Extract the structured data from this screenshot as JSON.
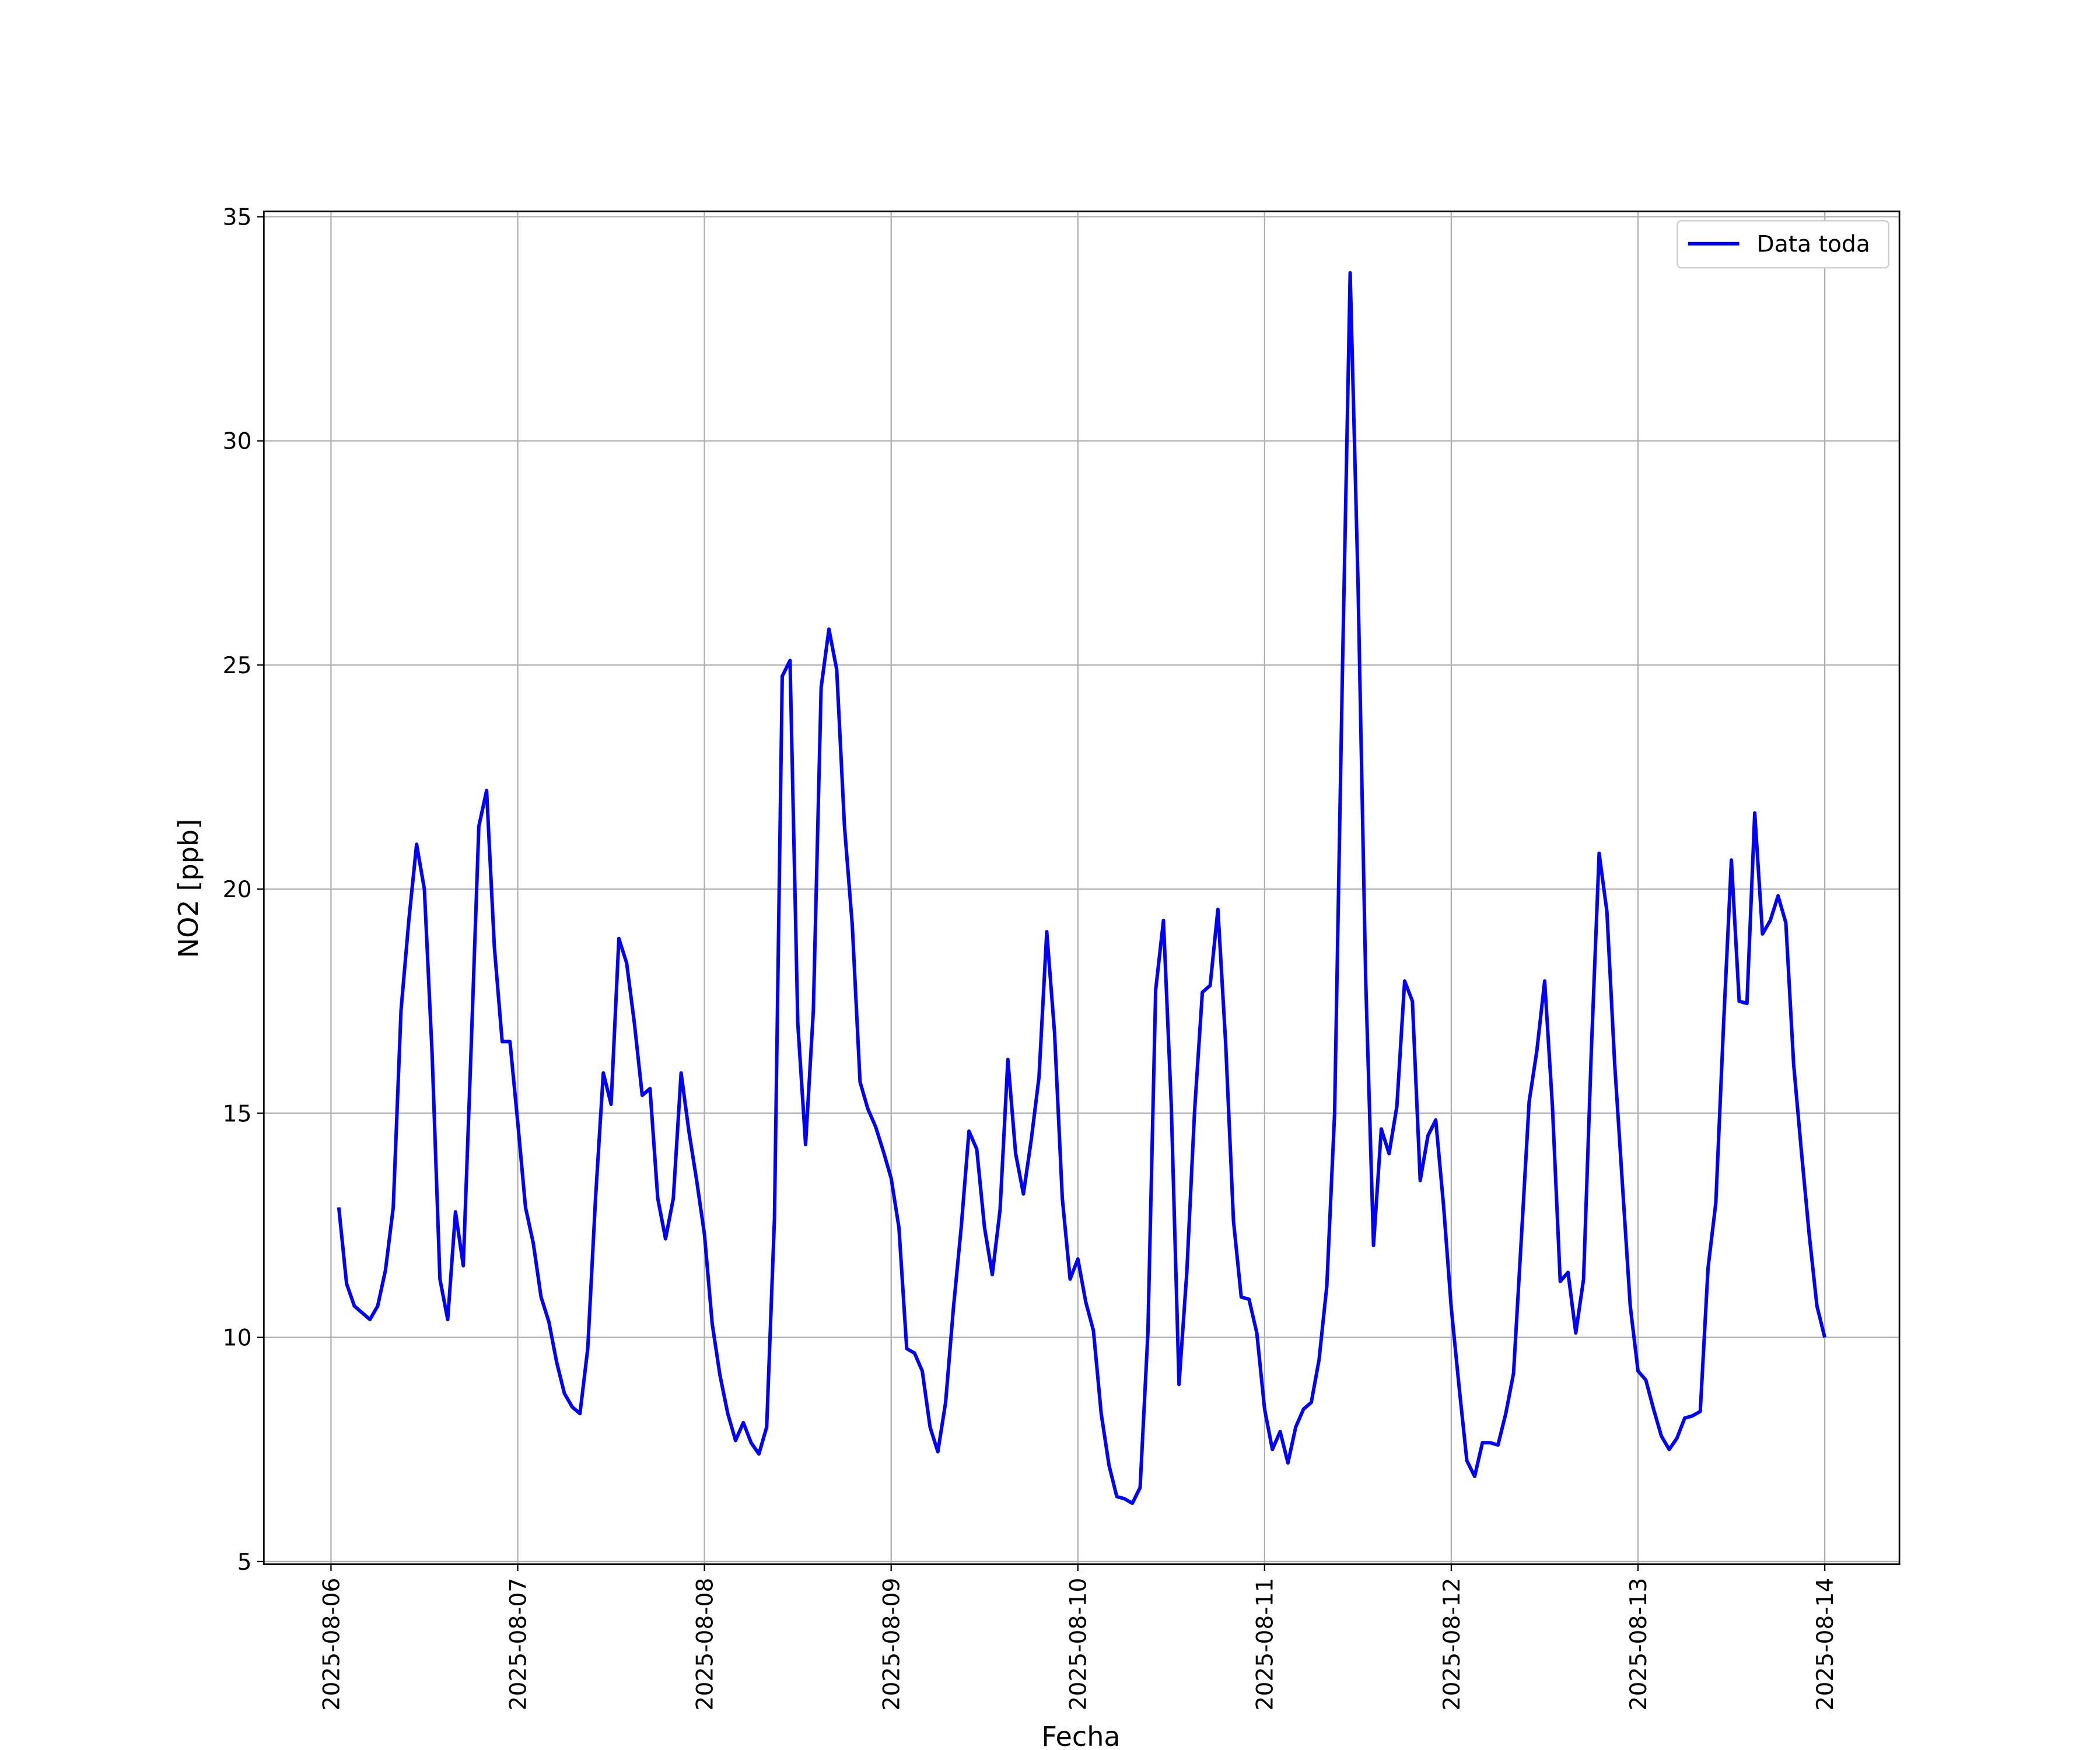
{
  "chart_data": {
    "type": "line",
    "xlabel": "Fecha",
    "ylabel": "NO2 [ppb]",
    "x": [
      "2025-08-06 01:00",
      "2025-08-06 02:00",
      "2025-08-06 03:00",
      "2025-08-06 04:00",
      "2025-08-06 05:00",
      "2025-08-06 06:00",
      "2025-08-06 07:00",
      "2025-08-06 08:00",
      "2025-08-06 09:00",
      "2025-08-06 10:00",
      "2025-08-06 11:00",
      "2025-08-06 12:00",
      "2025-08-06 13:00",
      "2025-08-06 14:00",
      "2025-08-06 15:00",
      "2025-08-06 16:00",
      "2025-08-06 17:00",
      "2025-08-06 18:00",
      "2025-08-06 19:00",
      "2025-08-06 20:00",
      "2025-08-06 21:00",
      "2025-08-06 22:00",
      "2025-08-06 23:00",
      "2025-08-07 00:00",
      "2025-08-07 01:00",
      "2025-08-07 02:00",
      "2025-08-07 03:00",
      "2025-08-07 04:00",
      "2025-08-07 05:00",
      "2025-08-07 06:00",
      "2025-08-07 07:00",
      "2025-08-07 08:00",
      "2025-08-07 09:00",
      "2025-08-07 10:00",
      "2025-08-07 11:00",
      "2025-08-07 12:00",
      "2025-08-07 13:00",
      "2025-08-07 14:00",
      "2025-08-07 15:00",
      "2025-08-07 16:00",
      "2025-08-07 17:00",
      "2025-08-07 18:00",
      "2025-08-07 19:00",
      "2025-08-07 20:00",
      "2025-08-07 21:00",
      "2025-08-07 22:00",
      "2025-08-07 23:00",
      "2025-08-08 00:00",
      "2025-08-08 01:00",
      "2025-08-08 02:00",
      "2025-08-08 03:00",
      "2025-08-08 04:00",
      "2025-08-08 05:00",
      "2025-08-08 06:00",
      "2025-08-08 07:00",
      "2025-08-08 08:00",
      "2025-08-08 09:00",
      "2025-08-08 10:00",
      "2025-08-08 11:00",
      "2025-08-08 12:00",
      "2025-08-08 13:00",
      "2025-08-08 14:00",
      "2025-08-08 15:00",
      "2025-08-08 16:00",
      "2025-08-08 17:00",
      "2025-08-08 18:00",
      "2025-08-08 19:00",
      "2025-08-08 20:00",
      "2025-08-08 21:00",
      "2025-08-08 22:00",
      "2025-08-08 23:00",
      "2025-08-09 00:00",
      "2025-08-09 01:00",
      "2025-08-09 02:00",
      "2025-08-09 03:00",
      "2025-08-09 04:00",
      "2025-08-09 05:00",
      "2025-08-09 06:00",
      "2025-08-09 07:00",
      "2025-08-09 08:00",
      "2025-08-09 09:00",
      "2025-08-09 10:00",
      "2025-08-09 11:00",
      "2025-08-09 12:00",
      "2025-08-09 13:00",
      "2025-08-09 14:00",
      "2025-08-09 15:00",
      "2025-08-09 16:00",
      "2025-08-09 17:00",
      "2025-08-09 18:00",
      "2025-08-09 19:00",
      "2025-08-09 20:00",
      "2025-08-09 21:00",
      "2025-08-09 22:00",
      "2025-08-09 23:00",
      "2025-08-10 00:00",
      "2025-08-10 01:00",
      "2025-08-10 02:00",
      "2025-08-10 03:00",
      "2025-08-10 04:00",
      "2025-08-10 05:00",
      "2025-08-10 06:00",
      "2025-08-10 07:00",
      "2025-08-10 08:00",
      "2025-08-10 09:00",
      "2025-08-10 10:00",
      "2025-08-10 11:00",
      "2025-08-10 12:00",
      "2025-08-10 13:00",
      "2025-08-10 14:00",
      "2025-08-10 15:00",
      "2025-08-10 16:00",
      "2025-08-10 17:00",
      "2025-08-10 18:00",
      "2025-08-10 19:00",
      "2025-08-10 20:00",
      "2025-08-10 21:00",
      "2025-08-10 22:00",
      "2025-08-10 23:00",
      "2025-08-11 00:00",
      "2025-08-11 01:00",
      "2025-08-11 02:00",
      "2025-08-11 03:00",
      "2025-08-11 04:00",
      "2025-08-11 05:00",
      "2025-08-11 06:00",
      "2025-08-11 07:00",
      "2025-08-11 08:00",
      "2025-08-11 09:00",
      "2025-08-11 10:00",
      "2025-08-11 11:00",
      "2025-08-11 12:00",
      "2025-08-11 13:00",
      "2025-08-11 14:00",
      "2025-08-11 15:00",
      "2025-08-11 16:00",
      "2025-08-11 17:00",
      "2025-08-11 18:00",
      "2025-08-11 19:00",
      "2025-08-11 20:00",
      "2025-08-11 21:00",
      "2025-08-11 22:00",
      "2025-08-11 23:00",
      "2025-08-12 00:00",
      "2025-08-12 01:00",
      "2025-08-12 02:00",
      "2025-08-12 03:00",
      "2025-08-12 04:00",
      "2025-08-12 05:00",
      "2025-08-12 06:00",
      "2025-08-12 07:00",
      "2025-08-12 08:00",
      "2025-08-12 09:00",
      "2025-08-12 10:00",
      "2025-08-12 11:00",
      "2025-08-12 12:00",
      "2025-08-12 13:00",
      "2025-08-12 14:00",
      "2025-08-12 15:00",
      "2025-08-12 16:00",
      "2025-08-12 17:00",
      "2025-08-12 18:00",
      "2025-08-12 19:00",
      "2025-08-12 20:00",
      "2025-08-12 21:00",
      "2025-08-12 22:00",
      "2025-08-12 23:00",
      "2025-08-13 00:00",
      "2025-08-13 01:00",
      "2025-08-13 02:00",
      "2025-08-13 03:00",
      "2025-08-13 04:00",
      "2025-08-13 05:00",
      "2025-08-13 06:00",
      "2025-08-13 07:00",
      "2025-08-13 08:00",
      "2025-08-13 09:00",
      "2025-08-13 10:00",
      "2025-08-13 11:00",
      "2025-08-13 12:00",
      "2025-08-13 13:00",
      "2025-08-13 14:00",
      "2025-08-13 15:00",
      "2025-08-13 16:00",
      "2025-08-13 17:00",
      "2025-08-13 18:00",
      "2025-08-13 19:00",
      "2025-08-13 20:00",
      "2025-08-13 21:00",
      "2025-08-13 22:00",
      "2025-08-13 23:00",
      "2025-08-14 00:00"
    ],
    "series": [
      {
        "name": "Data toda",
        "color": "#0000ff",
        "values": [
          12.9,
          11.2,
          10.7,
          10.55,
          10.4,
          10.7,
          11.5,
          12.9,
          17.3,
          19.3,
          21.0,
          20.0,
          16.3,
          11.3,
          10.4,
          12.8,
          11.6,
          16.4,
          21.4,
          22.2,
          18.7,
          16.6,
          16.6,
          14.8,
          12.9,
          12.1,
          10.9,
          10.35,
          9.45,
          8.75,
          8.45,
          8.3,
          9.75,
          13.1,
          15.9,
          15.2,
          18.9,
          18.35,
          17.0,
          15.4,
          15.55,
          13.1,
          12.2,
          13.1,
          15.9,
          14.6,
          13.5,
          12.3,
          10.3,
          9.15,
          8.3,
          7.7,
          8.1,
          7.65,
          7.4,
          8.0,
          12.65,
          24.75,
          25.1,
          17.0,
          14.3,
          17.3,
          24.5,
          25.8,
          24.9,
          21.4,
          19.2,
          15.7,
          15.1,
          14.7,
          14.15,
          13.55,
          12.45,
          9.75,
          9.65,
          9.25,
          8.0,
          7.45,
          8.55,
          10.65,
          12.45,
          14.6,
          14.2,
          12.45,
          11.4,
          12.85,
          16.2,
          14.1,
          13.2,
          14.4,
          15.8,
          19.05,
          16.8,
          13.1,
          11.3,
          11.75,
          10.8,
          10.15,
          8.3,
          7.15,
          6.45,
          6.4,
          6.3,
          6.65,
          10.1,
          17.75,
          19.3,
          15.2,
          8.95,
          11.45,
          15.05,
          17.7,
          17.85,
          19.55,
          16.55,
          12.6,
          10.9,
          10.85,
          10.1,
          8.4,
          7.5,
          7.9,
          7.2,
          8.0,
          8.4,
          8.55,
          9.5,
          11.15,
          15.0,
          24.8,
          33.75,
          26.9,
          17.95,
          12.05,
          14.65,
          14.1,
          15.15,
          17.95,
          17.5,
          13.5,
          14.5,
          14.85,
          12.95,
          10.65,
          8.9,
          7.25,
          6.9,
          7.65,
          7.65,
          7.6,
          8.3,
          9.2,
          12.2,
          15.25,
          16.4,
          17.95,
          15.15,
          11.25,
          11.45,
          10.1,
          11.3,
          16.4,
          20.8,
          19.5,
          16.1,
          13.4,
          10.7,
          9.25,
          9.05,
          8.4,
          7.8,
          7.5,
          7.75,
          8.2,
          8.25,
          8.35,
          11.55,
          13.0,
          17.0,
          20.65,
          17.5,
          17.45,
          21.7,
          19.0,
          19.3,
          19.85,
          19.25,
          16.1,
          14.15,
          12.3,
          10.7,
          10.0
        ]
      }
    ],
    "xlim": [
      "2025-08-05 15:22",
      "2025-08-14 09:36"
    ],
    "xticks": [
      "2025-08-06",
      "2025-08-07",
      "2025-08-08",
      "2025-08-09",
      "2025-08-10",
      "2025-08-11",
      "2025-08-12",
      "2025-08-13",
      "2025-08-14"
    ],
    "ylim": [
      4.94,
      35.12
    ],
    "yticks": [
      5,
      10,
      15,
      20,
      25,
      30,
      35
    ],
    "grid": true,
    "legend": "upper right"
  }
}
